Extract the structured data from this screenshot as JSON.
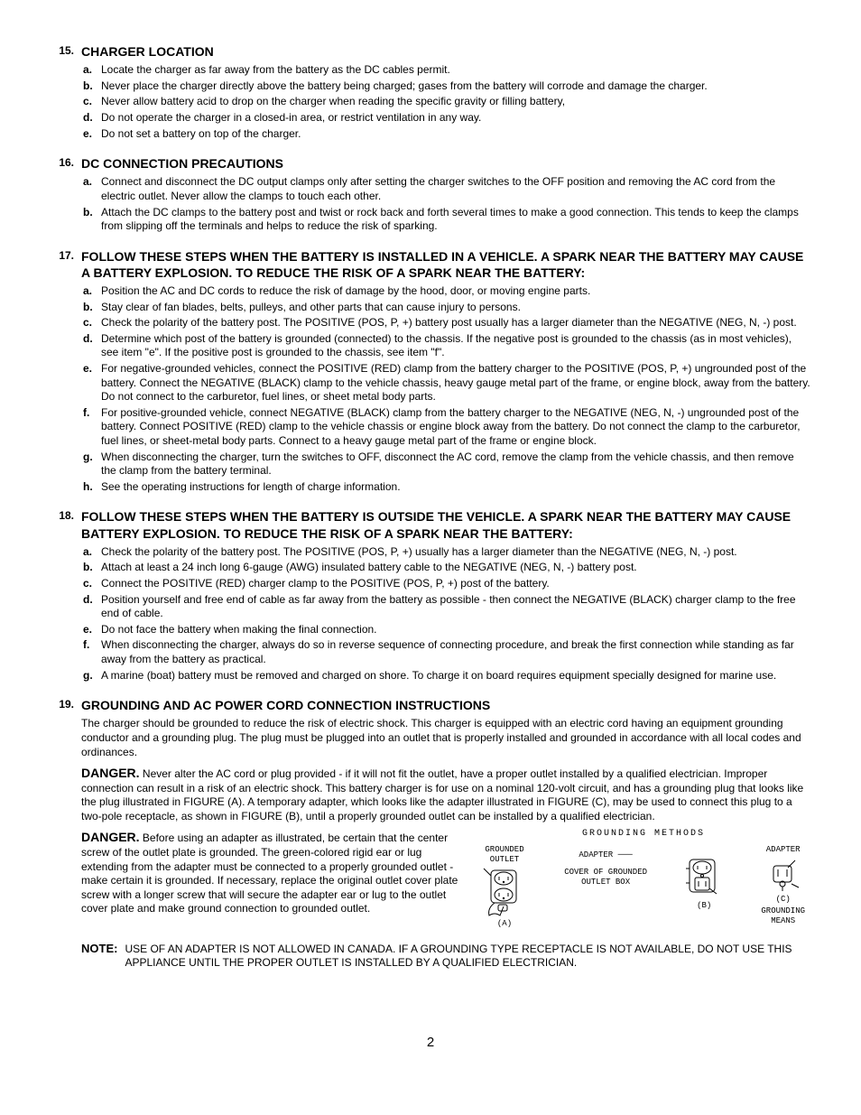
{
  "sections": [
    {
      "number": "15.",
      "heading": "CHARGER LOCATION",
      "items": [
        {
          "letter": "a.",
          "text": "Locate the charger as far away from the battery as the DC cables permit."
        },
        {
          "letter": "b.",
          "text": "Never place the charger directly above the battery being charged; gases from the battery will corrode and damage the charger."
        },
        {
          "letter": "c.",
          "text": "Never allow battery acid to drop on the charger when reading the specific gravity or filling battery,"
        },
        {
          "letter": "d.",
          "text": "Do not operate the charger in a closed-in area, or restrict ventilation in any way."
        },
        {
          "letter": "e.",
          "text": "Do not set a battery on top of the charger."
        }
      ]
    },
    {
      "number": "16.",
      "heading": "DC CONNECTION PRECAUTIONS",
      "items": [
        {
          "letter": "a.",
          "text": "Connect and disconnect the DC output clamps only after setting the charger switches to the OFF position and removing the AC cord from the electric outlet.  Never allow the clamps to touch each other."
        },
        {
          "letter": "b.",
          "text": "Attach the DC clamps to the battery post and twist or rock back and forth several times to make a good connection.  This tends to keep the clamps from slipping off the terminals and helps to reduce the risk of sparking."
        }
      ]
    },
    {
      "number": "17.",
      "heading": "FOLLOW THESE STEPS WHEN THE BATTERY IS INSTALLED IN A VEHICLE.  A SPARK NEAR THE BATTERY MAY CAUSE A BATTERY EXPLOSION.  TO REDUCE THE RISK OF A SPARK NEAR THE BATTERY:",
      "items": [
        {
          "letter": "a.",
          "text": "Position the AC and DC cords to reduce the risk of damage by the hood, door, or moving engine parts."
        },
        {
          "letter": "b.",
          "text": "Stay clear of fan blades, belts, pulleys, and other parts that can cause injury to persons."
        },
        {
          "letter": "c.",
          "text": "Check the polarity of the battery post.  The POSITIVE (POS, P, +) battery post usually has a larger diameter than the NEGATIVE (NEG, N, -) post."
        },
        {
          "letter": "d.",
          "text": "Determine which post of the battery is grounded (connected) to the chassis.  If the negative post is grounded to the chassis (as in most vehicles), see item \"e\".  If the positive post is grounded to the chassis, see item \"f\"."
        },
        {
          "letter": "e.",
          "text": "For negative-grounded vehicles, connect the POSITIVE (RED) clamp from the battery charger to the POSITIVE (POS, P, +) ungrounded post of the battery.  Connect the NEGATIVE (BLACK) clamp to the vehicle chassis, heavy gauge metal part of the frame, or engine block, away from the battery.  Do not connect to the carburetor, fuel lines, or sheet metal body parts."
        },
        {
          "letter": "f.",
          "text": "For positive-grounded vehicle, connect NEGATIVE (BLACK) clamp from the battery charger to the NEGATIVE (NEG, N, -) ungrounded post of the battery.  Connect POSITIVE (RED) clamp to the vehicle chassis or engine block away from the battery.  Do not connect the clamp to the carburetor, fuel lines, or sheet-metal body parts.  Connect to a heavy gauge metal part of the frame or engine block."
        },
        {
          "letter": "g.",
          "text": "When disconnecting the charger, turn the switches to OFF, disconnect the AC cord, remove the clamp from the vehicle chassis, and then remove the clamp from the battery terminal."
        },
        {
          "letter": "h.",
          "text": "See the operating instructions for length of charge information."
        }
      ]
    },
    {
      "number": "18.",
      "heading": "FOLLOW THESE STEPS WHEN THE BATTERY IS OUTSIDE THE VEHICLE.  A SPARK NEAR THE BATTERY MAY CAUSE BATTERY EXPLOSION.  TO REDUCE THE RISK OF A SPARK NEAR THE BATTERY:",
      "items": [
        {
          "letter": "a.",
          "text": "Check the polarity of the battery post.  The POSITIVE (POS, P, +) usually has a larger diameter than the NEGATIVE (NEG, N, -) post."
        },
        {
          "letter": "b.",
          "text": "Attach at least a 24 inch long 6-gauge (AWG) insulated battery cable to the NEGATIVE (NEG, N, -) battery post."
        },
        {
          "letter": "c.",
          "text": "Connect the POSITIVE (RED) charger clamp to the POSITIVE (POS, P, +) post of the battery."
        },
        {
          "letter": "d.",
          "text": "Position yourself and free end of cable as far away from the battery as possible - then connect the NEGATIVE (BLACK) charger clamp to the free end of cable."
        },
        {
          "letter": "e.",
          "text": "Do not face the battery when making the final connection."
        },
        {
          "letter": "f.",
          "text": "When disconnecting the charger, always do so in reverse sequence of connecting procedure, and break the first connection while standing as far away from the battery as practical."
        },
        {
          "letter": "g.",
          "text": "A marine (boat) battery must be removed and charged on shore.  To charge it on board requires equipment specially designed for marine use."
        }
      ]
    }
  ],
  "grounding": {
    "number": "19.",
    "heading": "GROUNDING AND AC POWER CORD CONNECTION INSTRUCTIONS",
    "intro": "The charger should be grounded to reduce the risk of electric shock.  This charger is equipped with an electric cord having an equipment grounding conductor and a grounding plug.  The plug must be plugged into an outlet that is properly installed and grounded in accordance with all local codes and ordinances.",
    "danger1_label": "DANGER.",
    "danger1_text": "  Never alter the AC cord or plug provided - if it will not fit the outlet, have a proper outlet installed by a qualified electrician.  Improper connection can result in a risk of an electric shock.  This battery charger is for use on a nominal 120-volt circuit, and has a grounding plug that looks like the plug illustrated in FIGURE (A). A temporary adapter, which looks like the adapter illustrated in FIGURE (C), may be used to connect this plug to a two-pole receptacle, as shown in FIGURE (B), until a properly grounded outlet can be installed by a qualified electrician.",
    "danger2_label": "DANGER.",
    "danger2_text": "  Before using an adapter as illustrated, be certain that the center screw of the outlet plate is grounded.  The green-colored rigid ear or lug extending from the adapter must be connected to a properly grounded outlet - make certain it is grounded.  If necessary, replace the original outlet cover plate screw with a longer screw that will secure the adapter ear or lug to the outlet cover plate and make ground connection to grounded outlet."
  },
  "figure": {
    "title": "GROUNDING  METHODS",
    "grounded_outlet": "GROUNDED\nOUTLET",
    "adapter": "ADAPTER",
    "adapter2": "ADAPTER",
    "cover": "COVER OF GROUNDED\nOUTLET BOX",
    "grounding_means": "GROUNDING\nMEANS",
    "a": "(A)",
    "b": "(B)",
    "c": "(C)"
  },
  "note": {
    "label": "NOTE:",
    "text": "USE OF AN ADAPTER IS NOT ALLOWED IN CANADA.  IF A GROUNDING TYPE RECEPTACLE IS NOT AVAILABLE, DO NOT USE THIS APPLIANCE UNTIL THE PROPER OUTLET IS INSTALLED BY A QUALIFIED ELECTRICIAN."
  },
  "page_number": "2"
}
